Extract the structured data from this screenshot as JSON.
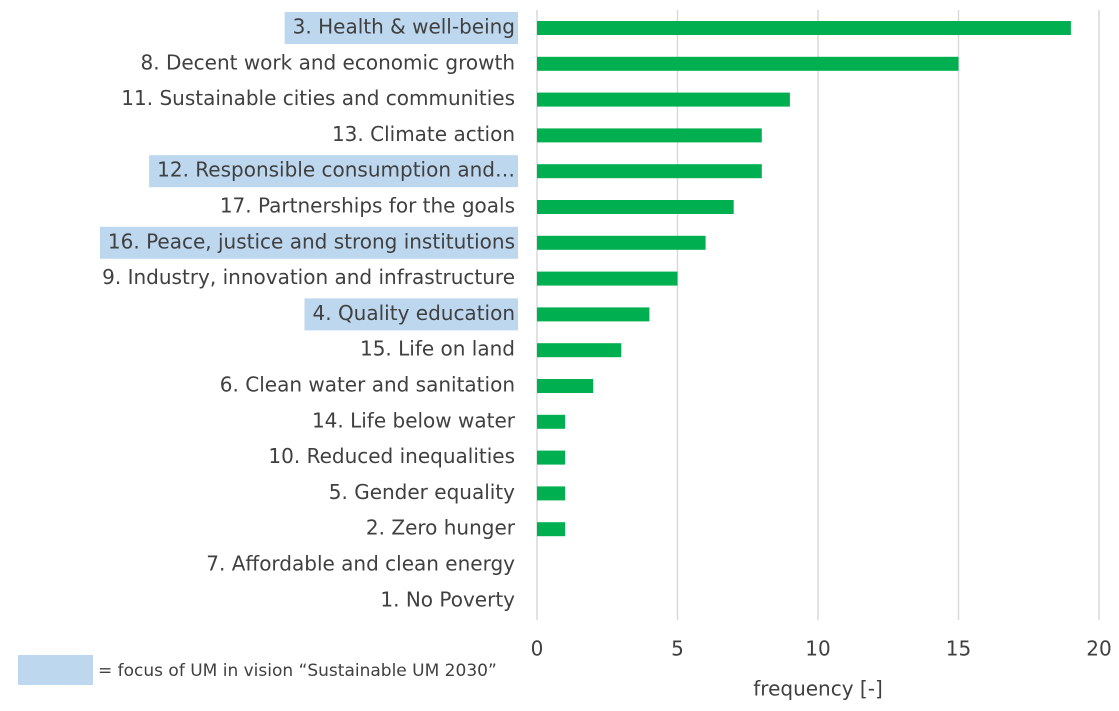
{
  "chart_data": {
    "type": "barh",
    "categories": [
      "3. Health & well-being",
      "8. Decent work and economic growth",
      "11. Sustainable cities and communities",
      "13. Climate action",
      "12. Responsible consumption and…",
      "17. Partnerships for the goals",
      "16. Peace, justice and strong institutions",
      "9. Industry, innovation and infrastructure",
      "4. Quality education",
      "15. Life on land",
      "6. Clean water and sanitation",
      "14. Life below water",
      "10. Reduced inequalities",
      "5. Gender equality",
      "2. Zero hunger",
      "7. Affordable and clean energy",
      "1. No Poverty"
    ],
    "values": [
      19,
      15,
      9,
      8,
      8,
      7,
      6,
      5,
      4,
      3,
      2,
      1,
      1,
      1,
      1,
      0,
      0
    ],
    "highlighted": [
      true,
      false,
      false,
      false,
      true,
      false,
      true,
      false,
      true,
      false,
      false,
      false,
      false,
      false,
      false,
      false,
      false
    ],
    "color": "#00b050",
    "highlight_color": "#bdd7ee",
    "xlabel": "frequency [-]",
    "xlim": [
      0,
      20
    ],
    "xticks": [
      0,
      5,
      10,
      15,
      20
    ],
    "grid": true,
    "legend_note": "= focus of UM in vision “Sustainable UM 2030”"
  }
}
